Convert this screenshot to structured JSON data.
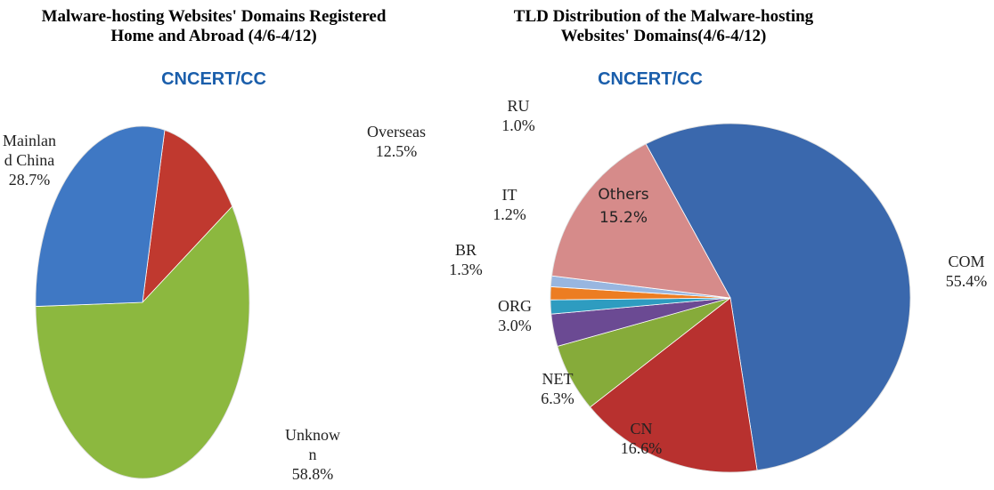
{
  "chart_data": [
    {
      "type": "pie",
      "title": "Malware-hosting Websites' Domains Registered Home and Abroad (4/6-4/12)",
      "subtitle": "CNCERT/CC",
      "categories": [
        "Overseas",
        "Unknown",
        "Mainland China"
      ],
      "values": [
        12.5,
        58.8,
        28.7
      ],
      "value_labels": [
        "12.5%",
        "58.8%",
        "28.7%"
      ],
      "colors": [
        "#c0392f",
        "#8cb83f",
        "#3f78c4"
      ]
    },
    {
      "type": "pie",
      "title": "TLD Distribution of the Malware-hosting Websites' Domains(4/6-4/12)",
      "subtitle": "CNCERT/CC",
      "categories": [
        "COM",
        "CN",
        "NET",
        "ORG",
        "BR",
        "IT",
        "RU",
        "Others"
      ],
      "values": [
        55.4,
        16.6,
        6.3,
        3.0,
        1.3,
        1.2,
        1.0,
        15.2
      ],
      "value_labels": [
        "55.4%",
        "16.6%",
        "6.3%",
        "3.0%",
        "1.3%",
        "1.2%",
        "1.0%",
        "15.2%"
      ],
      "colors": [
        "#3a68ad",
        "#b8312f",
        "#86ab3a",
        "#6b4a93",
        "#2e9cc0",
        "#ec7d22",
        "#98b6e0",
        "#d68b8a"
      ]
    }
  ]
}
